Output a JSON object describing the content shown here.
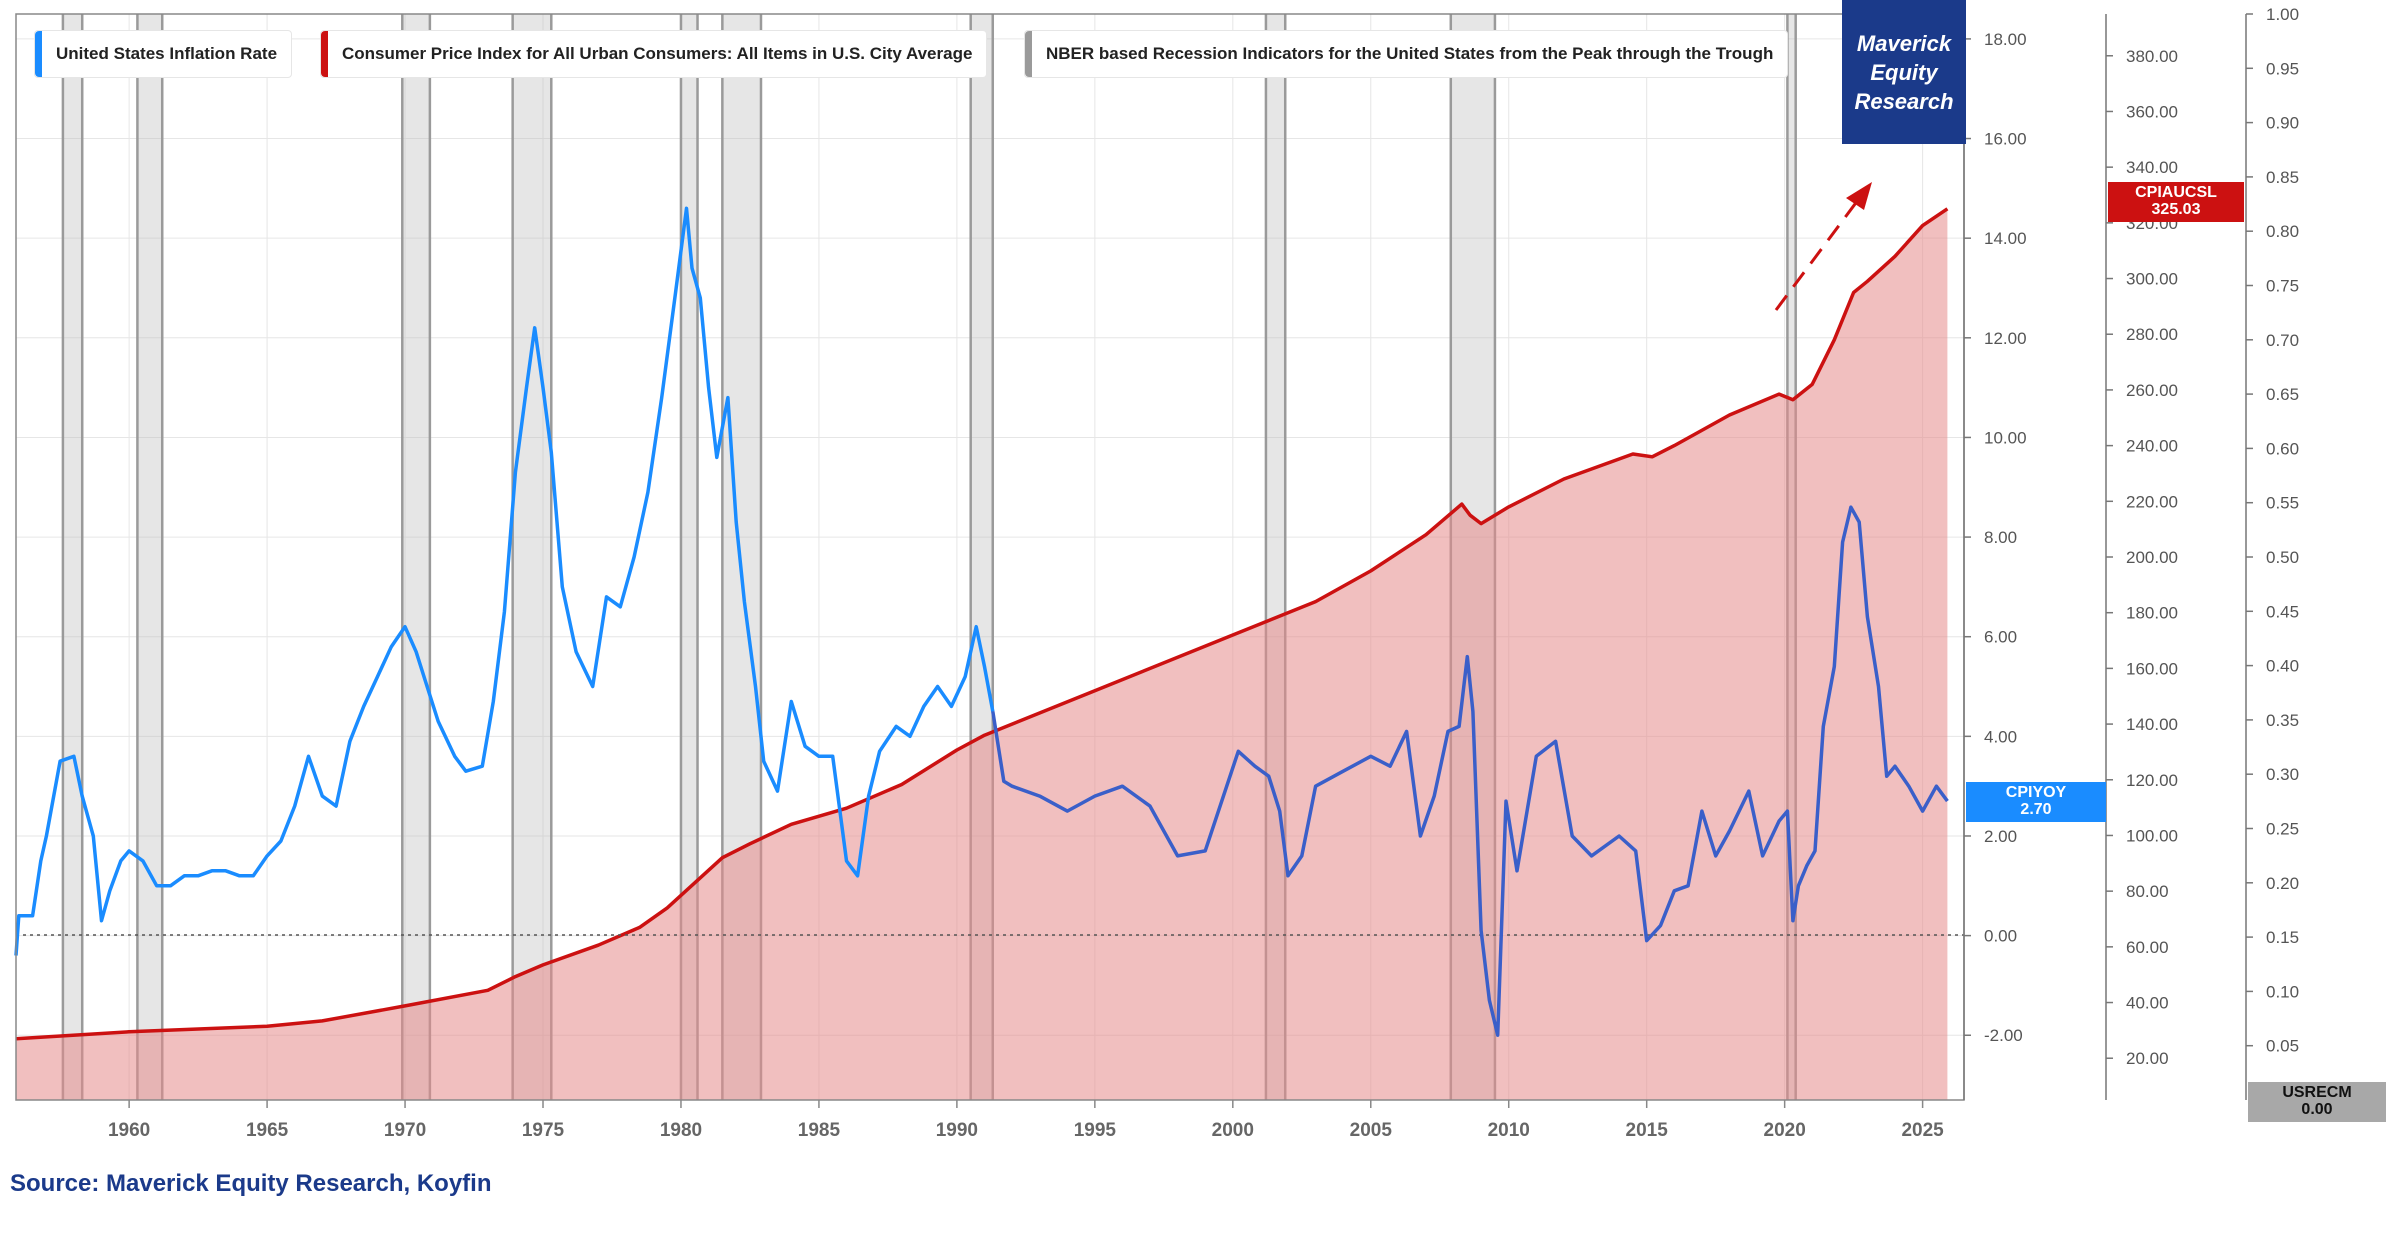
{
  "chart_data": {
    "type": "line",
    "source": "Source: Maverick Equity Research, Koyfin",
    "brand": [
      "Maverick",
      "Equity",
      "Research"
    ],
    "x_range": [
      1955.9,
      2026.5
    ],
    "x_ticks": [
      "1960",
      "1965",
      "1970",
      "1975",
      "1980",
      "1985",
      "1990",
      "1995",
      "2000",
      "2005",
      "2010",
      "2015",
      "2020",
      "2025"
    ],
    "axes": {
      "inflation": {
        "range": [
          -3.3,
          18.5
        ],
        "ticks": [
          "-2.00",
          "0.00",
          "2.00",
          "4.00",
          "6.00",
          "8.00",
          "10.00",
          "12.00",
          "14.00",
          "16.00",
          "18.00"
        ]
      },
      "cpi": {
        "range": [
          5.0,
          395.0
        ],
        "ticks": [
          "20.00",
          "40.00",
          "60.00",
          "80.00",
          "100.00",
          "120.00",
          "140.00",
          "160.00",
          "180.00",
          "200.00",
          "220.00",
          "240.00",
          "260.00",
          "280.00",
          "300.00",
          "320.00",
          "340.00",
          "360.00",
          "380.00"
        ]
      },
      "recession": {
        "range": [
          0,
          1.0
        ],
        "ticks": [
          "0.05",
          "0.10",
          "0.15",
          "0.20",
          "0.25",
          "0.30",
          "0.35",
          "0.40",
          "0.45",
          "0.50",
          "0.55",
          "0.60",
          "0.65",
          "0.70",
          "0.75",
          "0.80",
          "0.85",
          "0.90",
          "0.95",
          "1.00"
        ]
      }
    },
    "legend": [
      {
        "label": "United States Inflation Rate",
        "color": "#1a8cff"
      },
      {
        "label": "Consumer Price Index for All Urban Consumers: All Items in U.S. City Average",
        "color": "#cc1111"
      },
      {
        "label": "NBER based Recession Indicators for the United States from the Peak through the Trough",
        "color": "#9a9a9a"
      }
    ],
    "end_labels": {
      "inflation": {
        "name": "CPIYOY",
        "value": "2.70"
      },
      "cpi": {
        "name": "CPIAUCSL",
        "value": "325.03"
      },
      "recession": {
        "name": "USRECM",
        "value": "0.00"
      }
    },
    "recessions": [
      [
        1957.6,
        1958.3
      ],
      [
        1960.3,
        1961.2
      ],
      [
        1969.9,
        1970.9
      ],
      [
        1973.9,
        1975.3
      ],
      [
        1980.0,
        1980.6
      ],
      [
        1981.5,
        1982.9
      ],
      [
        1990.5,
        1991.3
      ],
      [
        2001.2,
        2001.9
      ],
      [
        2007.9,
        2009.5
      ],
      [
        2020.1,
        2020.4
      ]
    ],
    "series": [
      {
        "name": "United States Inflation Rate",
        "x": [
          1955.9,
          1956.0,
          1956.5,
          1956.8,
          1957.0,
          1957.5,
          1958.0,
          1958.3,
          1958.7,
          1959.0,
          1959.3,
          1959.7,
          1960.0,
          1960.5,
          1961.0,
          1961.5,
          1962.0,
          1962.5,
          1963.0,
          1963.5,
          1964.0,
          1964.5,
          1965.0,
          1965.5,
          1966.0,
          1966.5,
          1967.0,
          1967.5,
          1968.0,
          1968.5,
          1969.0,
          1969.5,
          1970.0,
          1970.4,
          1970.8,
          1971.2,
          1971.8,
          1972.2,
          1972.8,
          1973.2,
          1973.6,
          1974.0,
          1974.4,
          1974.7,
          1975.0,
          1975.3,
          1975.7,
          1976.2,
          1976.8,
          1977.3,
          1977.8,
          1978.3,
          1978.8,
          1979.3,
          1979.8,
          1980.2,
          1980.4,
          1980.7,
          1981.0,
          1981.3,
          1981.7,
          1982.0,
          1982.3,
          1982.7,
          1983.0,
          1983.5,
          1984.0,
          1984.5,
          1985.0,
          1985.5,
          1986.0,
          1986.4,
          1986.8,
          1987.2,
          1987.8,
          1988.3,
          1988.8,
          1989.3,
          1989.8,
          1990.3,
          1990.7,
          1991.0,
          1991.3,
          1991.7,
          1992.0,
          1993.0,
          1994.0,
          1995.0,
          1996.0,
          1997.0,
          1998.0,
          1999.0,
          2000.2,
          2000.8,
          2001.3,
          2001.7,
          2002.0,
          2002.5,
          2003.0,
          2004.0,
          2005.0,
          2005.7,
          2006.3,
          2006.8,
          2007.3,
          2007.8,
          2008.2,
          2008.5,
          2008.7,
          2009.0,
          2009.3,
          2009.6,
          2009.9,
          2010.3,
          2011.0,
          2011.7,
          2012.3,
          2013.0,
          2014.0,
          2014.6,
          2015.0,
          2015.5,
          2016.0,
          2016.5,
          2017.0,
          2017.5,
          2018.0,
          2018.7,
          2019.2,
          2019.8,
          2020.1,
          2020.3,
          2020.5,
          2020.8,
          2021.1,
          2021.4,
          2021.8,
          2022.1,
          2022.4,
          2022.7,
          2023.0,
          2023.4,
          2023.7,
          2024.0,
          2024.5,
          2025.0,
          2025.5,
          2025.9
        ],
        "values": [
          -0.4,
          0.4,
          0.4,
          1.5,
          2.0,
          3.5,
          3.6,
          2.8,
          2.0,
          0.3,
          0.9,
          1.5,
          1.7,
          1.5,
          1.0,
          1.0,
          1.2,
          1.2,
          1.3,
          1.3,
          1.2,
          1.2,
          1.6,
          1.9,
          2.6,
          3.6,
          2.8,
          2.6,
          3.9,
          4.6,
          5.2,
          5.8,
          6.2,
          5.7,
          5.0,
          4.3,
          3.6,
          3.3,
          3.4,
          4.7,
          6.5,
          9.3,
          11.0,
          12.2,
          11.0,
          9.7,
          7.0,
          5.7,
          5.0,
          6.8,
          6.6,
          7.6,
          8.9,
          10.8,
          12.9,
          14.6,
          13.4,
          12.8,
          11.0,
          9.6,
          10.8,
          8.3,
          6.7,
          5.0,
          3.5,
          2.9,
          4.7,
          3.8,
          3.6,
          3.6,
          1.5,
          1.2,
          2.8,
          3.7,
          4.2,
          4.0,
          4.6,
          5.0,
          4.6,
          5.2,
          6.2,
          5.4,
          4.5,
          3.1,
          3.0,
          2.8,
          2.5,
          2.8,
          3.0,
          2.6,
          1.6,
          1.7,
          3.7,
          3.4,
          3.2,
          2.5,
          1.2,
          1.6,
          3.0,
          3.3,
          3.6,
          3.4,
          4.1,
          2.0,
          2.8,
          4.1,
          4.2,
          5.6,
          4.5,
          0.1,
          -1.3,
          -2.0,
          2.7,
          1.3,
          3.6,
          3.9,
          2.0,
          1.6,
          2.0,
          1.7,
          -0.1,
          0.2,
          0.9,
          1.0,
          2.5,
          1.6,
          2.1,
          2.9,
          1.6,
          2.3,
          2.5,
          0.3,
          1.0,
          1.4,
          1.7,
          4.2,
          5.4,
          7.9,
          8.6,
          8.3,
          6.4,
          5.0,
          3.2,
          3.4,
          3.0,
          2.5,
          3.0,
          2.7
        ]
      },
      {
        "name": "Consumer Price Index for All Urban Consumers: All Items in U.S. City Average",
        "x": [
          1955.9,
          1960.0,
          1965.0,
          1967.0,
          1970.0,
          1973.0,
          1974.0,
          1975.0,
          1977.0,
          1978.5,
          1979.5,
          1980.5,
          1981.5,
          1982.5,
          1984.0,
          1986.0,
          1988.0,
          1990.0,
          1991.0,
          1995.0,
          2000.0,
          2003.0,
          2005.0,
          2007.0,
          2008.3,
          2008.6,
          2009.0,
          2010.0,
          2012.0,
          2014.5,
          2015.2,
          2016.0,
          2018.0,
          2019.8,
          2020.3,
          2021.0,
          2021.8,
          2022.5,
          2023.0,
          2024.0,
          2025.0,
          2025.9
        ],
        "values": [
          27.0,
          29.5,
          31.5,
          33.4,
          38.8,
          44.4,
          49.3,
          53.5,
          60.6,
          67.0,
          74.0,
          83.0,
          92.0,
          97.0,
          104.0,
          109.8,
          118.3,
          130.7,
          136.0,
          152.0,
          172.0,
          184.0,
          195.0,
          208.0,
          219.0,
          215.0,
          212.0,
          218.0,
          228.0,
          237.0,
          236.0,
          240.0,
          251.0,
          258.5,
          256.5,
          262.0,
          278.0,
          295.0,
          299.0,
          308.0,
          319.0,
          325.03
        ]
      }
    ]
  }
}
